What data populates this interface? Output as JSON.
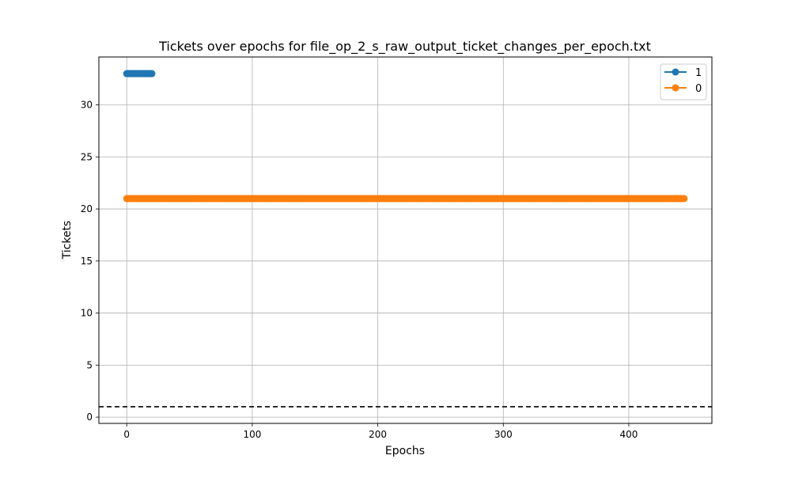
{
  "chart_data": {
    "type": "line",
    "title": "Tickets over epochs for file_op_2_s_raw_output_ticket_changes_per_epoch.txt",
    "xlabel": "Epochs",
    "ylabel": "Tickets",
    "xlim": [
      -22.2,
      466.2
    ],
    "ylim": [
      -0.6,
      34.6
    ],
    "xticks": [
      0,
      100,
      200,
      300,
      400
    ],
    "yticks": [
      0,
      5,
      10,
      15,
      20,
      25,
      30
    ],
    "grid": true,
    "legend_position": "upper right",
    "series": [
      {
        "name": "1",
        "color": "#1f77b4",
        "x_start": 0,
        "x_end": 20,
        "value": 33
      },
      {
        "name": "0",
        "color": "#ff7f0e",
        "x_start": 0,
        "x_end": 444,
        "value": 21
      }
    ],
    "reference_line": {
      "y": 1,
      "style": "dashed",
      "color": "#000000"
    }
  }
}
